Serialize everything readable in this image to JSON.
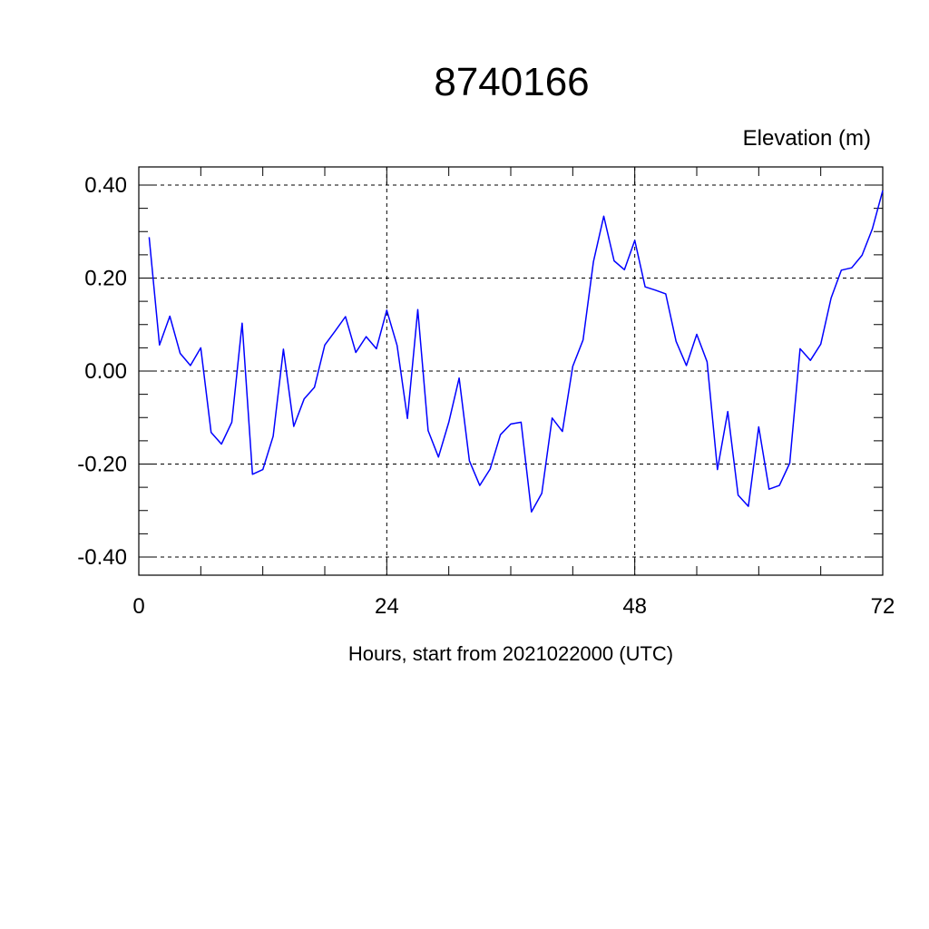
{
  "chart_data": {
    "type": "line",
    "title": "8740166",
    "ylabel": "Elevation (m)",
    "xlabel": "Hours, start from 2021022000 (UTC)",
    "xlim": [
      0,
      72
    ],
    "ylim": [
      -0.4,
      0.4
    ],
    "x_ticks": [
      0,
      24,
      48,
      72
    ],
    "x_tick_labels": [
      "0",
      "24",
      "48",
      "72"
    ],
    "y_ticks": [
      -0.4,
      -0.2,
      0.0,
      0.2,
      0.4
    ],
    "y_tick_labels": [
      "-0.40",
      "-0.20",
      "0.00",
      "0.20",
      "0.40"
    ],
    "grid": true,
    "series": [
      {
        "color": "#0000ff",
        "x": [
          1,
          2,
          3,
          4,
          5,
          6,
          7,
          8,
          9,
          10,
          11,
          12,
          13,
          14,
          15,
          16,
          17,
          18,
          19,
          20,
          21,
          22,
          23,
          24,
          25,
          26,
          27,
          28,
          29,
          30,
          31,
          32,
          33,
          34,
          35,
          36,
          37,
          38,
          39,
          40,
          41,
          42,
          43,
          44,
          45,
          46,
          47,
          48,
          49,
          50,
          51,
          52,
          53,
          54,
          55,
          56,
          57,
          58,
          59,
          60,
          61,
          62,
          63,
          64,
          65,
          66,
          67,
          68,
          69,
          70,
          71,
          72
        ],
        "values": [
          0.288,
          0.056,
          0.118,
          0.038,
          0.012,
          0.05,
          -0.132,
          -0.157,
          -0.11,
          0.103,
          -0.222,
          -0.212,
          -0.14,
          0.047,
          -0.119,
          -0.06,
          -0.035,
          0.056,
          0.086,
          0.117,
          0.04,
          0.074,
          0.048,
          0.131,
          0.055,
          -0.102,
          0.132,
          -0.128,
          -0.185,
          -0.11,
          -0.015,
          -0.193,
          -0.246,
          -0.211,
          -0.137,
          -0.114,
          -0.11,
          -0.303,
          -0.263,
          -0.101,
          -0.13,
          0.01,
          0.067,
          0.235,
          0.333,
          0.237,
          0.218,
          0.281,
          0.181,
          0.174,
          0.166,
          0.064,
          0.012,
          0.079,
          0.02,
          -0.212,
          -0.087,
          -0.267,
          -0.291,
          -0.12,
          -0.254,
          -0.246,
          -0.198,
          0.048,
          0.023,
          0.058,
          0.157,
          0.217,
          0.222,
          0.249,
          0.306,
          0.388
        ]
      }
    ]
  }
}
